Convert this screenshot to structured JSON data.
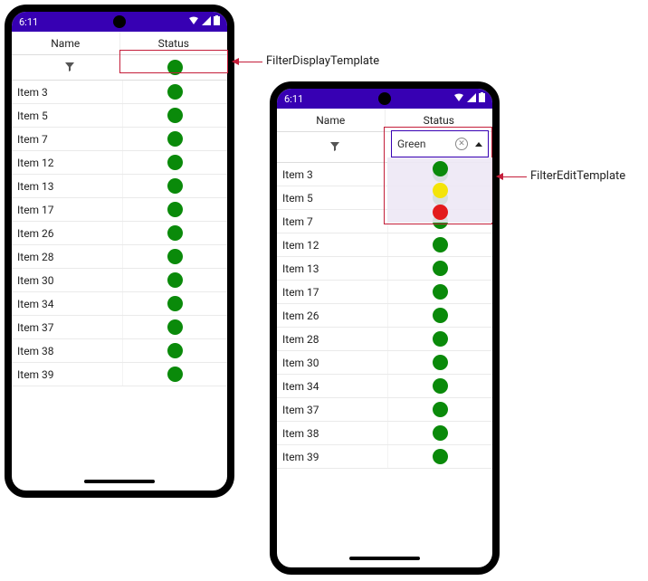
{
  "statusbar_time": "6:11",
  "columns": {
    "name": "Name",
    "status": "Status"
  },
  "items": [
    "Item 3",
    "Item 5",
    "Item 7",
    "Item 12",
    "Item 13",
    "Item 17",
    "Item 26",
    "Item 28",
    "Item 30",
    "Item 34",
    "Item 37",
    "Item 38",
    "Item 39"
  ],
  "status_colors": {
    "green": "#0a8a0a",
    "yellow": "#f4e409",
    "red": "#e31b1b"
  },
  "app_bar_color": "#3700b3",
  "filter_display_dot": "green",
  "filter_edit": {
    "selected_label": "Green",
    "options": [
      "green",
      "yellow",
      "red"
    ]
  },
  "callouts": {
    "display": "FilterDisplayTemplate",
    "edit": "FilterEditTemplate"
  }
}
